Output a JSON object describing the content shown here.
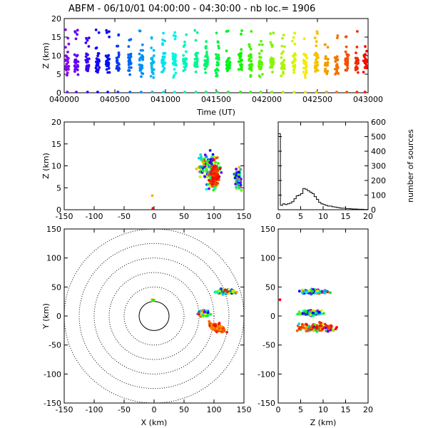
{
  "title": "ABFM - 06/10/01 04:00:00 - 04:30:00 - nb loc.=    1906",
  "chart_data": [
    {
      "id": "time-height",
      "type": "scatter",
      "xlabel": "Time (UT)",
      "ylabel": "Z (km)",
      "x_tick_labels": [
        "040000",
        "040500",
        "041000",
        "041500",
        "042000",
        "042500",
        "043000"
      ],
      "x_tick_minutes": [
        0,
        5,
        10,
        15,
        20,
        25,
        30
      ],
      "xlim": [
        0,
        30
      ],
      "ylim": [
        0,
        20
      ],
      "y_ticks": [
        0,
        5,
        10,
        15,
        20
      ],
      "color_scale": "rainbow by time (purple to red)",
      "cluster_minutes": [
        0.3,
        1.2,
        2.3,
        3.3,
        4.3,
        5.3,
        6.5,
        7.6,
        8.7,
        9.8,
        10.9,
        11.9,
        13.0,
        14.0,
        15.1,
        16.2,
        17.4,
        18.4,
        19.4,
        20.5,
        21.6,
        22.7,
        23.8,
        24.9,
        25.9,
        26.9,
        27.9,
        28.9,
        29.7
      ]
    },
    {
      "id": "x-z",
      "type": "scatter",
      "xlabel": "",
      "ylabel": "Z (km)",
      "xlim": [
        -150,
        150
      ],
      "ylim": [
        0,
        20
      ],
      "x_ticks": [
        -150,
        -100,
        -50,
        0,
        50,
        100,
        150
      ],
      "y_ticks": [
        0,
        5,
        10,
        15,
        20
      ],
      "clusters": [
        {
          "x": 100,
          "z": 8,
          "sx": 14,
          "sz": 3.5
        },
        {
          "x": 90,
          "z": 10,
          "sx": 18,
          "sz": 3
        },
        {
          "x": 140,
          "z": 7,
          "sx": 6,
          "sz": 2.5
        }
      ]
    },
    {
      "id": "z-histogram",
      "type": "line",
      "xlabel": "",
      "ylabel": "number of sources",
      "xlim": [
        0,
        20
      ],
      "ylim": [
        0,
        600
      ],
      "x_ticks": [
        0,
        5,
        10,
        15,
        20
      ],
      "y_ticks": [
        0,
        100,
        200,
        300,
        400,
        500,
        600
      ],
      "bin_width_km": 0.5,
      "counts": [
        520,
        30,
        40,
        35,
        40,
        45,
        55,
        75,
        95,
        100,
        110,
        145,
        140,
        130,
        120,
        110,
        90,
        70,
        50,
        40,
        35,
        30,
        25,
        25,
        20,
        18,
        15,
        12,
        10,
        10,
        8,
        8,
        6,
        5,
        5,
        4,
        3,
        3,
        2,
        2
      ]
    },
    {
      "id": "x-y",
      "type": "scatter",
      "xlabel": "X (km)",
      "ylabel": "Y (km)",
      "xlim": [
        -150,
        150
      ],
      "ylim": [
        -150,
        150
      ],
      "x_ticks": [
        -150,
        -100,
        -50,
        0,
        50,
        100,
        150
      ],
      "y_ticks": [
        -150,
        -100,
        -50,
        0,
        50,
        100,
        150
      ],
      "range_rings_km": [
        25,
        50,
        75,
        100,
        125,
        150
      ],
      "clusters": [
        {
          "x": 120,
          "y": 42,
          "sx": 18,
          "sy": 4
        },
        {
          "x": 82,
          "y": 5,
          "sx": 10,
          "sy": 5
        },
        {
          "x": 105,
          "y": -20,
          "sx": 14,
          "sy": 8
        },
        {
          "x": -2,
          "y": 28,
          "sx": 3,
          "sy": 2
        }
      ]
    },
    {
      "id": "z-y",
      "type": "scatter",
      "xlabel": "Z (km)",
      "ylabel": "",
      "xlim": [
        0,
        20
      ],
      "ylim": [
        -150,
        150
      ],
      "x_ticks": [
        0,
        5,
        10,
        15,
        20
      ],
      "y_ticks": [
        -150,
        -100,
        -50,
        0,
        50,
        100,
        150
      ],
      "clusters": [
        {
          "z": 8,
          "y": 42,
          "sz": 3,
          "sy": 4
        },
        {
          "z": 7.5,
          "y": 5,
          "sz": 2.5,
          "sy": 5
        },
        {
          "z": 8.5,
          "y": -20,
          "sz": 3.5,
          "sy": 8
        }
      ]
    }
  ]
}
